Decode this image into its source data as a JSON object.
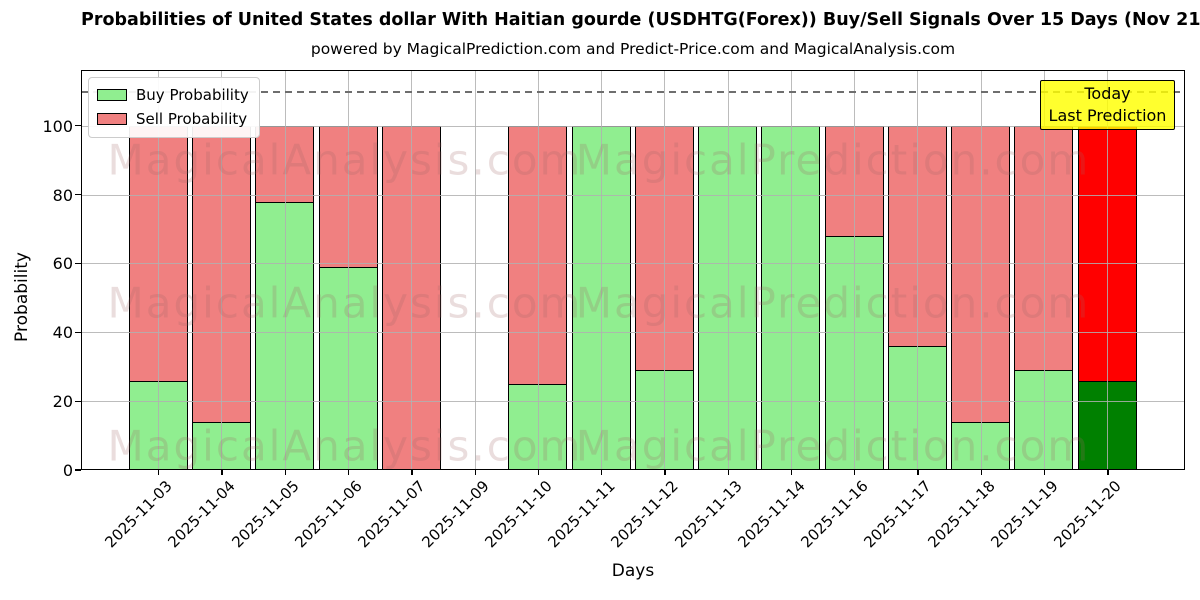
{
  "chart_data": {
    "type": "bar",
    "stacked": true,
    "title": "Probabilities of United States dollar With Haitian gourde (USDHTG(Forex)) Buy/Sell Signals Over 15 Days (Nov 21)",
    "subtitle": "powered by MagicalPrediction.com and Predict-Price.com and MagicalAnalysis.com",
    "xlabel": "Days",
    "ylabel": "Probability",
    "categories": [
      "2025-11-03",
      "2025-11-04",
      "2025-11-05",
      "2025-11-06",
      "2025-11-07",
      "2025-11-09",
      "2025-11-10",
      "2025-11-11",
      "2025-11-12",
      "2025-11-13",
      "2025-11-14",
      "2025-11-16",
      "2025-11-17",
      "2025-11-18",
      "2025-11-19",
      "2025-11-20"
    ],
    "series": [
      {
        "name": "Buy Probability",
        "color": "#90EE90",
        "values": [
          26,
          14,
          78,
          59,
          0,
          0,
          25,
          100,
          29,
          100,
          100,
          68,
          36,
          14,
          29,
          26
        ]
      },
      {
        "name": "Sell Probability",
        "color": "#F08080",
        "values": [
          74,
          86,
          22,
          41,
          100,
          0,
          75,
          0,
          71,
          0,
          0,
          32,
          64,
          86,
          71,
          74
        ]
      }
    ],
    "today_category": "2025-11-20",
    "today_colors": {
      "buy": "#008000",
      "sell": "#FF0000"
    },
    "bar_edge_color": "#000000",
    "yticks": [
      0,
      20,
      40,
      60,
      80,
      100
    ],
    "ylim": [
      0,
      116.2
    ],
    "dashed_line_y": 110,
    "grid": true,
    "legend": {
      "position": "upper-left",
      "items": [
        {
          "label": "Buy Probability",
          "color": "#90EE90"
        },
        {
          "label": "Sell Probability",
          "color": "#F08080"
        }
      ]
    },
    "annotation": {
      "lines": [
        "Today",
        "Last Prediction"
      ],
      "bg_color": "#FFFF00"
    },
    "watermarks": {
      "left_text": "MagicalAnalysis.com",
      "right_text": "MagicalPrediction.com"
    }
  }
}
